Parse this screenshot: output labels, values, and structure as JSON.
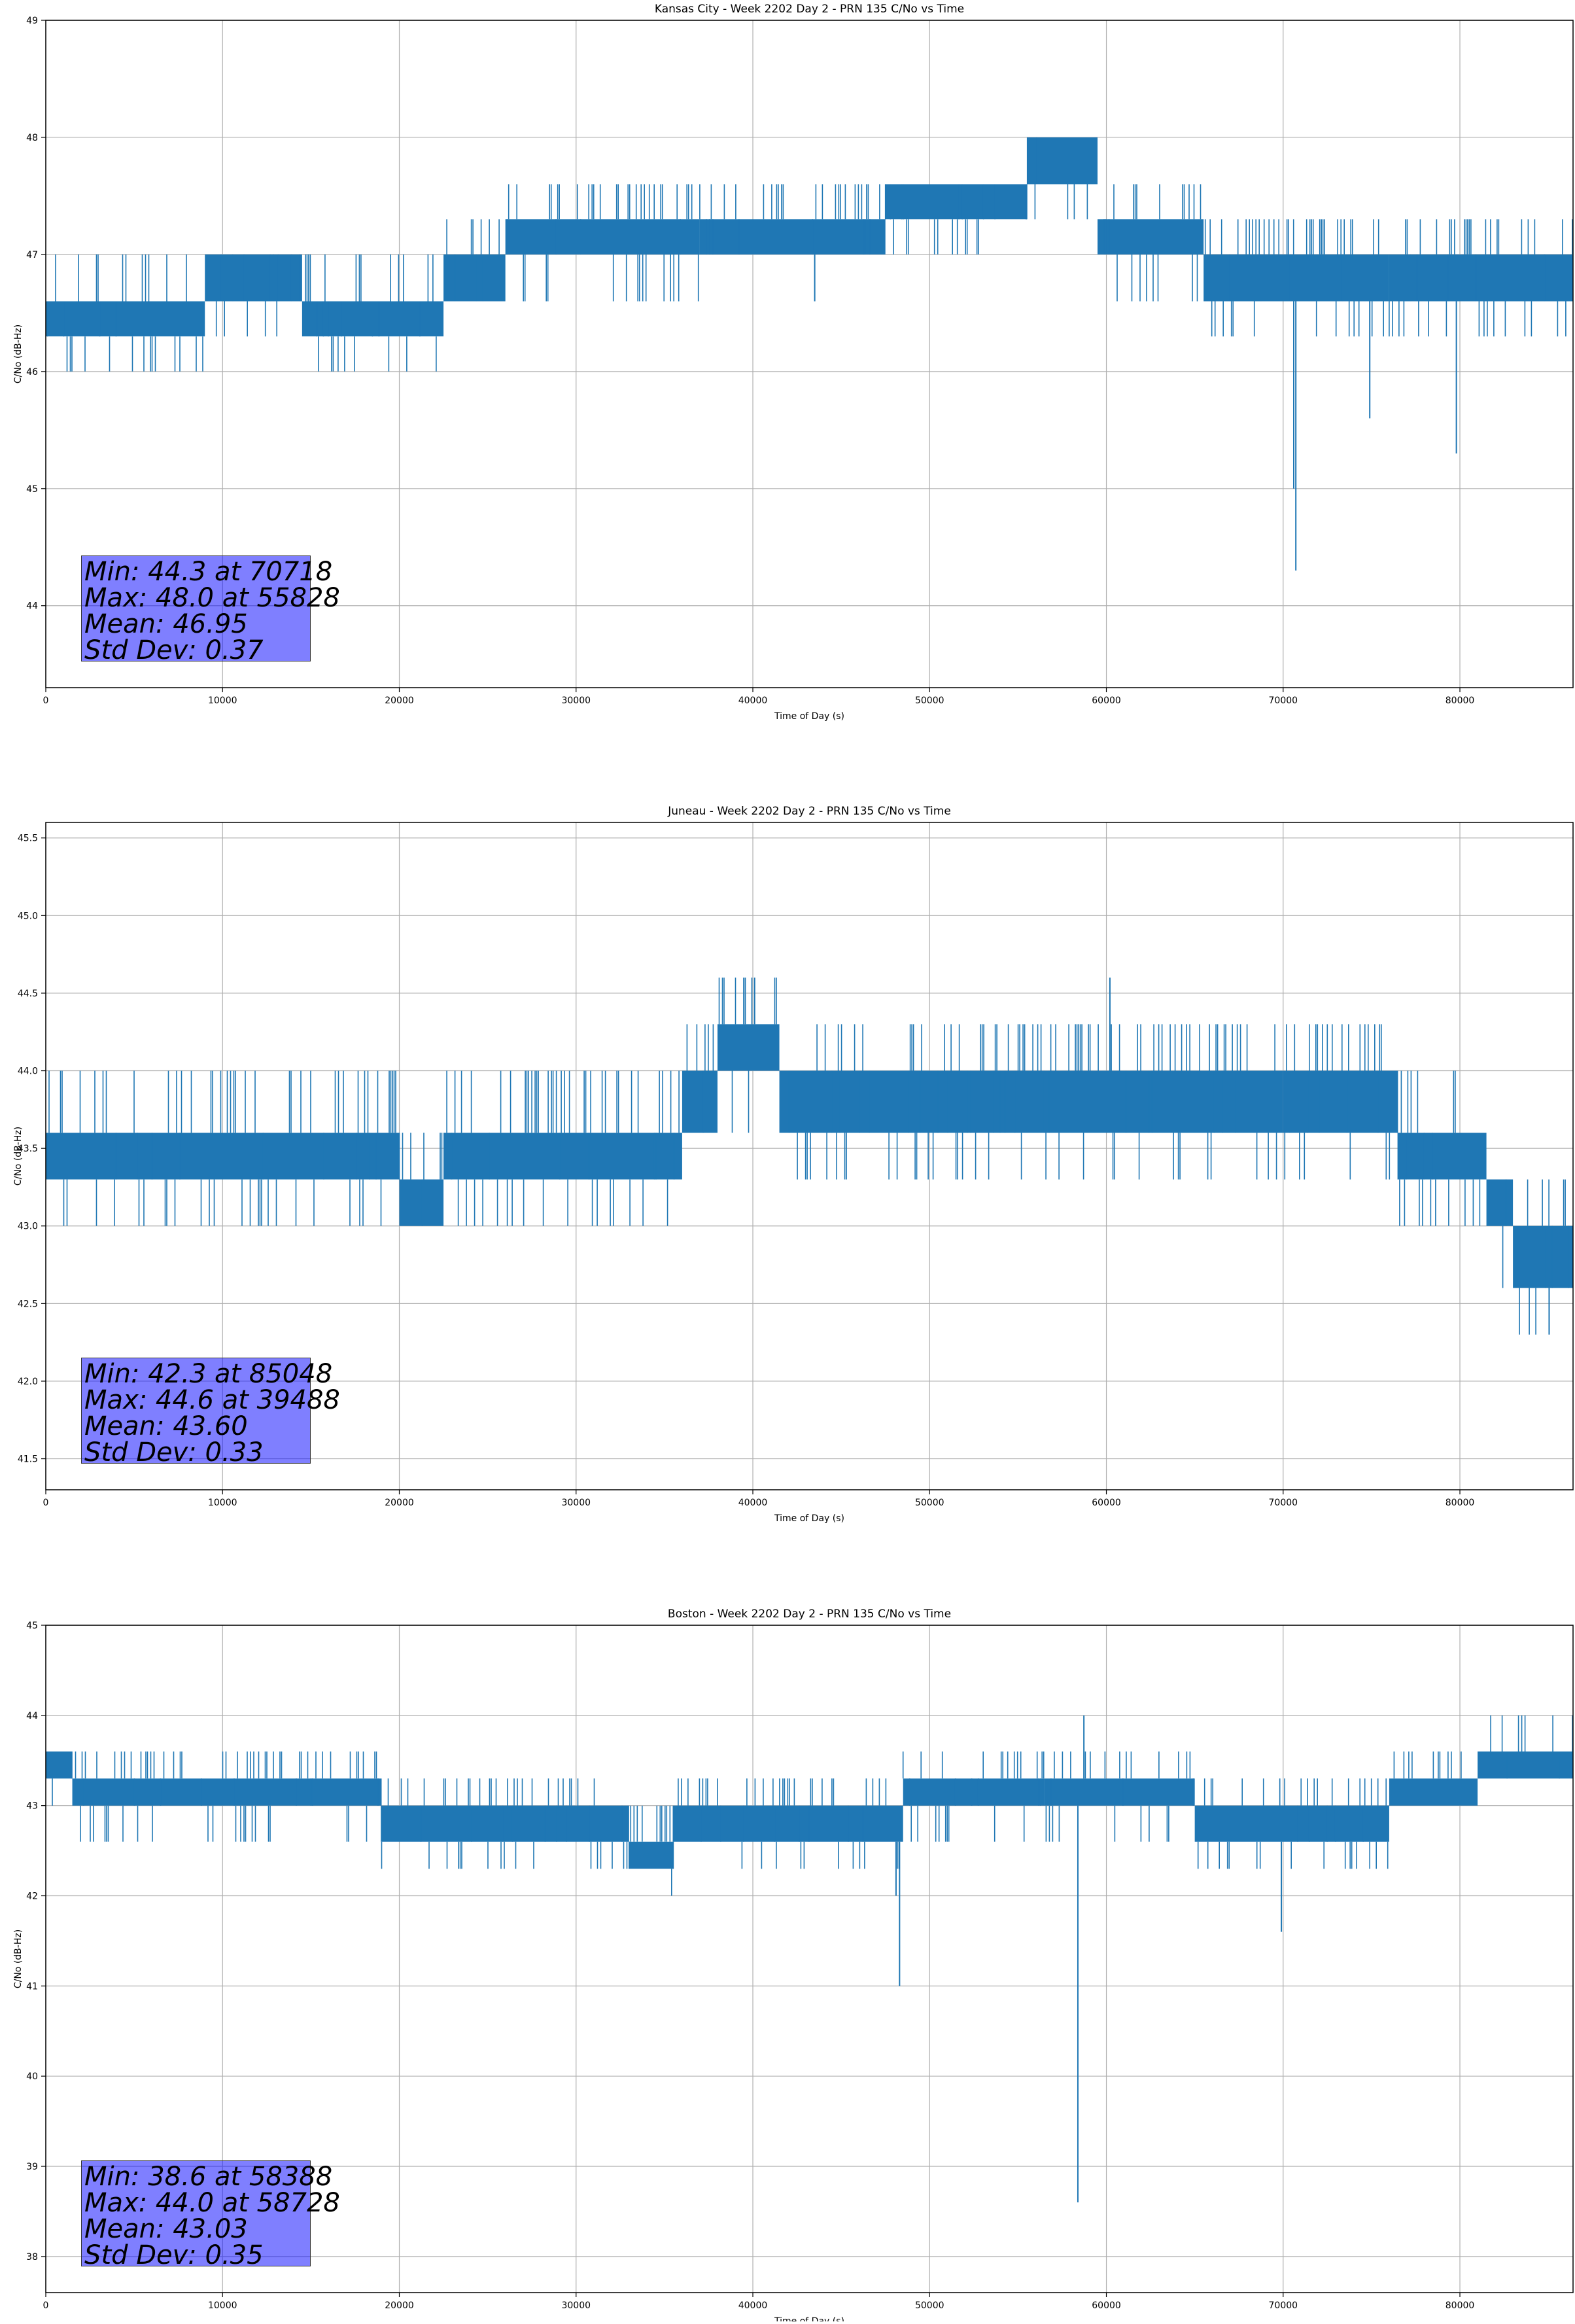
{
  "figure": {
    "series_color": "#1f77b4",
    "stats_box_color": "#8080ff"
  },
  "chart_data": [
    {
      "type": "line",
      "title": "Kansas City - Week 2202 Day 2 - PRN 135 C/No vs Time",
      "xlabel": "Time of Day (s)",
      "ylabel": "C/No (dB-Hz)",
      "xlim": [
        0,
        86400
      ],
      "ylim": [
        43.3,
        49.0
      ],
      "xticks": [
        0,
        10000,
        20000,
        30000,
        40000,
        50000,
        60000,
        70000,
        80000
      ],
      "yticks": [
        44,
        45,
        46,
        47,
        48,
        49
      ],
      "ytick_labels": [
        "44",
        "45",
        "46",
        "47",
        "48",
        "49"
      ],
      "grid": true,
      "stats": {
        "min_text": "Min: 44.3 at 70718",
        "max_text": "Max: 48.0 at 55828",
        "mean_text": "Mean: 46.95",
        "std_text": "Std Dev: 0.37"
      },
      "bands": [
        {
          "x": [
            0,
            9000
          ],
          "lo": 46.3,
          "hi": 46.6,
          "up": 47.0,
          "down": 46.0
        },
        {
          "x": [
            9000,
            14500
          ],
          "lo": 46.6,
          "hi": 47.0,
          "up": 47.0,
          "down": 46.3
        },
        {
          "x": [
            14500,
            22500
          ],
          "lo": 46.3,
          "hi": 46.6,
          "up": 47.0,
          "down": 46.0
        },
        {
          "x": [
            22500,
            26000
          ],
          "lo": 46.6,
          "hi": 47.0,
          "up": 47.3,
          "down": 46.6
        },
        {
          "x": [
            26000,
            37000
          ],
          "lo": 47.0,
          "hi": 47.3,
          "up": 47.6,
          "down": 46.6
        },
        {
          "x": [
            37000,
            47500
          ],
          "lo": 47.0,
          "hi": 47.3,
          "up": 47.6,
          "down": 47.0
        },
        {
          "x": [
            47500,
            55500
          ],
          "lo": 47.3,
          "hi": 47.6,
          "up": 47.6,
          "down": 47.0
        },
        {
          "x": [
            55500,
            59500
          ],
          "lo": 47.6,
          "hi": 48.0,
          "up": 48.0,
          "down": 47.3
        },
        {
          "x": [
            59500,
            65500
          ],
          "lo": 47.0,
          "hi": 47.3,
          "up": 47.6,
          "down": 46.6
        },
        {
          "x": [
            65500,
            76000
          ],
          "lo": 46.6,
          "hi": 47.0,
          "up": 47.3,
          "down": 46.3
        },
        {
          "x": [
            76000,
            86400
          ],
          "lo": 46.6,
          "hi": 47.0,
          "up": 47.3,
          "down": 46.3
        }
      ],
      "spikes": [
        {
          "x": 70718,
          "y": 44.3
        },
        {
          "x": 70600,
          "y": 45.0
        },
        {
          "x": 74900,
          "y": 45.6
        },
        {
          "x": 79800,
          "y": 45.3
        },
        {
          "x": 43500,
          "y": 46.6
        }
      ]
    },
    {
      "type": "line",
      "title": "Juneau - Week 2202 Day 2 - PRN 135 C/No vs Time",
      "xlabel": "Time of Day (s)",
      "ylabel": "C/No (dB-Hz)",
      "xlim": [
        0,
        86400
      ],
      "ylim": [
        41.3,
        45.6
      ],
      "xticks": [
        0,
        10000,
        20000,
        30000,
        40000,
        50000,
        60000,
        70000,
        80000
      ],
      "yticks": [
        41.5,
        42.0,
        42.5,
        43.0,
        43.5,
        44.0,
        44.5,
        45.0,
        45.5
      ],
      "ytick_labels": [
        "41.5",
        "42.0",
        "42.5",
        "43.0",
        "43.5",
        "44.0",
        "44.5",
        "45.0",
        "45.5"
      ],
      "grid": true,
      "stats": {
        "min_text": "Min: 42.3 at 85048",
        "max_text": "Max: 44.6 at 39488",
        "mean_text": "Mean: 43.60",
        "std_text": "Std Dev: 0.33"
      },
      "bands": [
        {
          "x": [
            0,
            20000
          ],
          "lo": 43.3,
          "hi": 43.6,
          "up": 44.0,
          "down": 43.0
        },
        {
          "x": [
            20000,
            22500
          ],
          "lo": 43.0,
          "hi": 43.3,
          "up": 43.6,
          "down": 43.0
        },
        {
          "x": [
            22500,
            36000
          ],
          "lo": 43.3,
          "hi": 43.6,
          "up": 44.0,
          "down": 43.0
        },
        {
          "x": [
            36000,
            38000
          ],
          "lo": 43.6,
          "hi": 44.0,
          "up": 44.3,
          "down": 43.6
        },
        {
          "x": [
            38000,
            41500
          ],
          "lo": 44.0,
          "hi": 44.3,
          "up": 44.6,
          "down": 43.6
        },
        {
          "x": [
            41500,
            70000
          ],
          "lo": 43.6,
          "hi": 44.0,
          "up": 44.3,
          "down": 43.3
        },
        {
          "x": [
            70000,
            76500
          ],
          "lo": 43.6,
          "hi": 44.0,
          "up": 44.3,
          "down": 43.3
        },
        {
          "x": [
            76500,
            81500
          ],
          "lo": 43.3,
          "hi": 43.6,
          "up": 44.0,
          "down": 43.0
        },
        {
          "x": [
            81500,
            83000
          ],
          "lo": 43.0,
          "hi": 43.3,
          "up": 43.3,
          "down": 42.6
        },
        {
          "x": [
            83000,
            86400
          ],
          "lo": 42.6,
          "hi": 43.0,
          "up": 43.3,
          "down": 42.3
        }
      ],
      "spikes": [
        {
          "x": 39488,
          "y": 44.6
        },
        {
          "x": 40100,
          "y": 44.6
        },
        {
          "x": 60200,
          "y": 44.6
        },
        {
          "x": 85048,
          "y": 42.3
        }
      ]
    },
    {
      "type": "line",
      "title": "Boston - Week 2202 Day 2 - PRN 135 C/No vs Time",
      "xlabel": "Time of Day (s)",
      "ylabel": "C/No (dB-Hz)",
      "xlim": [
        0,
        86400
      ],
      "ylim": [
        37.6,
        45.0
      ],
      "xticks": [
        0,
        10000,
        20000,
        30000,
        40000,
        50000,
        60000,
        70000,
        80000
      ],
      "yticks": [
        38,
        39,
        40,
        41,
        42,
        43,
        44,
        45
      ],
      "ytick_labels": [
        "38",
        "39",
        "40",
        "41",
        "42",
        "43",
        "44",
        "45"
      ],
      "grid": true,
      "stats": {
        "min_text": "Min: 38.6 at 58388",
        "max_text": "Max: 44.0 at 58728",
        "mean_text": "Mean: 43.03",
        "std_text": "Std Dev: 0.35"
      },
      "bands": [
        {
          "x": [
            0,
            1500
          ],
          "lo": 43.3,
          "hi": 43.6,
          "up": 43.6,
          "down": 43.0
        },
        {
          "x": [
            1500,
            19000
          ],
          "lo": 43.0,
          "hi": 43.3,
          "up": 43.6,
          "down": 42.6
        },
        {
          "x": [
            19000,
            33000
          ],
          "lo": 42.6,
          "hi": 43.0,
          "up": 43.3,
          "down": 42.3
        },
        {
          "x": [
            33000,
            35500
          ],
          "lo": 42.3,
          "hi": 42.6,
          "up": 43.0,
          "down": 42.0
        },
        {
          "x": [
            35500,
            48500
          ],
          "lo": 42.6,
          "hi": 43.0,
          "up": 43.3,
          "down": 42.3
        },
        {
          "x": [
            48500,
            56500
          ],
          "lo": 43.0,
          "hi": 43.3,
          "up": 43.6,
          "down": 42.6
        },
        {
          "x": [
            56500,
            65000
          ],
          "lo": 43.0,
          "hi": 43.3,
          "up": 43.6,
          "down": 42.6
        },
        {
          "x": [
            65000,
            76000
          ],
          "lo": 42.6,
          "hi": 43.0,
          "up": 43.3,
          "down": 42.3
        },
        {
          "x": [
            76000,
            81000
          ],
          "lo": 43.0,
          "hi": 43.3,
          "up": 43.6,
          "down": 43.0
        },
        {
          "x": [
            81000,
            86400
          ],
          "lo": 43.3,
          "hi": 43.6,
          "up": 44.0,
          "down": 43.3
        }
      ],
      "spikes": [
        {
          "x": 58388,
          "y": 38.6
        },
        {
          "x": 48300,
          "y": 41.0
        },
        {
          "x": 48100,
          "y": 42.0
        },
        {
          "x": 69900,
          "y": 41.6
        },
        {
          "x": 58728,
          "y": 44.0
        }
      ]
    }
  ]
}
